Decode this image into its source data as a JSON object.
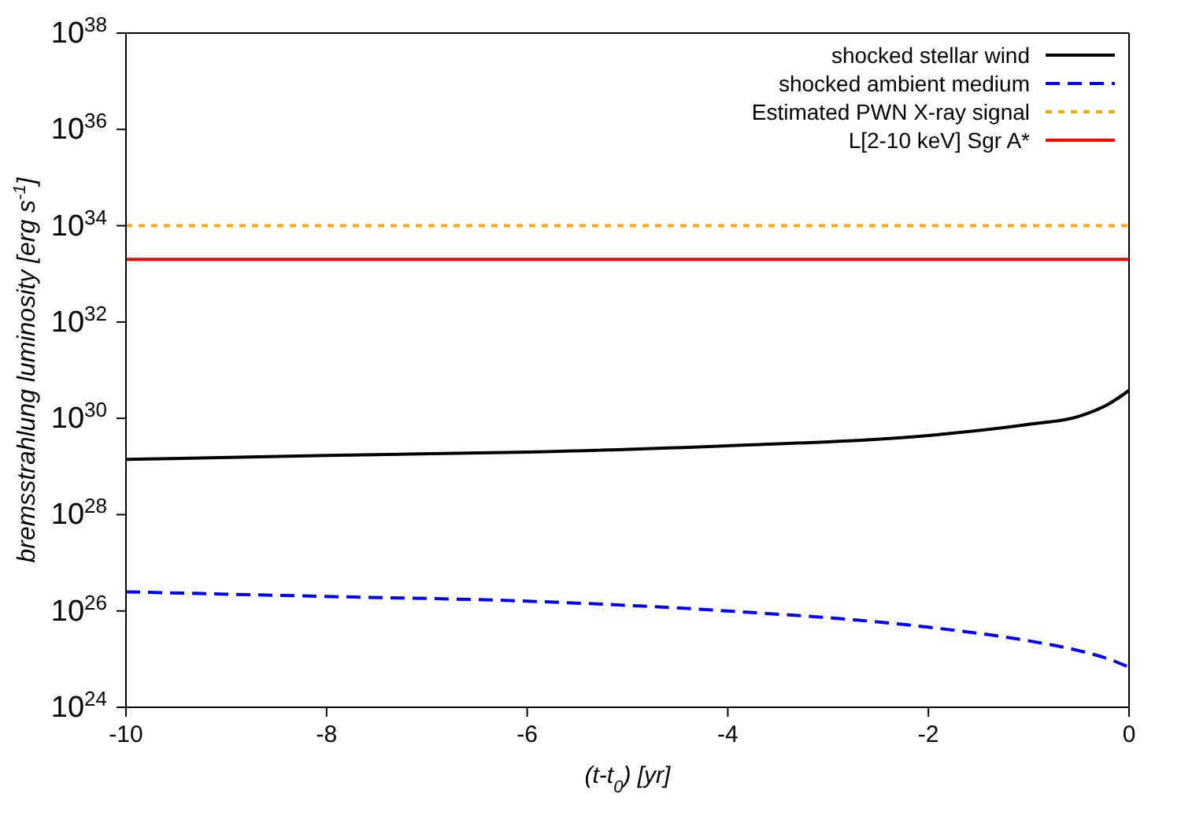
{
  "chart_data": {
    "type": "line",
    "xlabel": "(t-t$_{0}$) [yr]",
    "ylabel": "bremsstrahlung luminosity [erg s$^{-1}$]",
    "log": "y",
    "xlim": [
      -10,
      0
    ],
    "xticks": [
      -10,
      -8,
      -6,
      -4,
      -2,
      0
    ],
    "ylim": [
      1e+24,
      1e+38
    ],
    "yticks": [
      {
        "value": 1e+24,
        "label": "10$^{24}$"
      },
      {
        "value": 1e+26,
        "label": "10$^{26}$"
      },
      {
        "value": 1e+28,
        "label": "10$^{28}$"
      },
      {
        "value": 1e+30,
        "label": "10$^{30}$"
      },
      {
        "value": 1e+32,
        "label": "10$^{32}$"
      },
      {
        "value": 1e+34,
        "label": "10$^{34}$"
      },
      {
        "value": 1e+36,
        "label": "10$^{36}$"
      },
      {
        "value": 1e+38,
        "label": "10$^{38}$"
      }
    ],
    "legend": "top right",
    "marker": "none",
    "series": [
      {
        "name": "shocked stellar wind",
        "color": "#000000",
        "line_style": "solid",
        "x": [
          -10,
          -8,
          -6,
          -4,
          -2,
          -1,
          -0.5,
          -0.2,
          0
        ],
        "values": [
          1.4e+29,
          1.7e+29,
          2e+29,
          2.7e+29,
          4.4e+29,
          7.5e+29,
          1.1e+30,
          2e+30,
          3.8e+30
        ]
      },
      {
        "name": "shocked ambient medium",
        "color": "#0000ff",
        "line_style": "dashed",
        "x": [
          -10,
          -8,
          -6,
          -4,
          -2,
          -1,
          -0.5,
          -0.2,
          0
        ],
        "values": [
          2.5e+26,
          2e+26,
          1.6e+26,
          1e+26,
          4.6e+25,
          2.4e+25,
          1.5e+25,
          1e+25,
          6.8e+24
        ]
      },
      {
        "name": "Estimated PWN X-ray signal",
        "color": "#ffa500",
        "line_style": "dotted",
        "x": [
          -10,
          0
        ],
        "values": [
          1e+34,
          1e+34
        ]
      },
      {
        "name": "L[2-10 keV] Sgr A*",
        "color": "#ff0000",
        "line_style": "solid",
        "x": [
          -10,
          0
        ],
        "values": [
          2e+33,
          2e+33
        ]
      }
    ]
  }
}
